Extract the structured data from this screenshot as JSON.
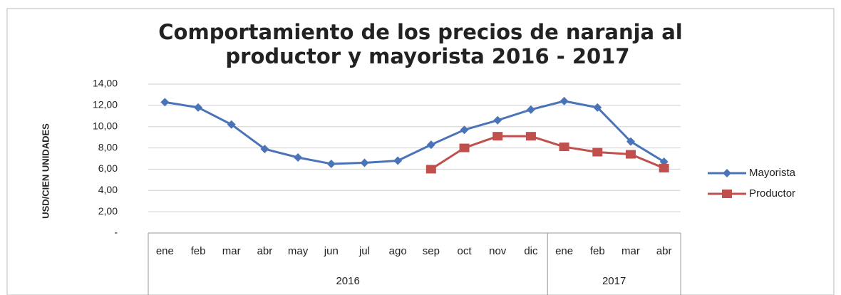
{
  "chart_data": {
    "type": "line",
    "title": [
      "Comportamiento de los precios de naranja al",
      "productor y mayorista 2016 - 2017"
    ],
    "y_label": "USD/CIEN UNIDADES",
    "categories": [
      "ene",
      "feb",
      "mar",
      "abr",
      "may",
      "jun",
      "jul",
      "ago",
      "sep",
      "oct",
      "nov",
      "dic",
      "ene",
      "feb",
      "mar",
      "abr"
    ],
    "groups": [
      {
        "label": "2016",
        "count": 12
      },
      {
        "label": "2017",
        "count": 4
      }
    ],
    "series": [
      {
        "name": "Mayorista",
        "color": "#4a73b8",
        "marker": "diamond",
        "values": [
          12.3,
          11.8,
          10.2,
          7.9,
          7.1,
          6.5,
          6.6,
          6.8,
          8.3,
          9.7,
          10.6,
          11.6,
          12.4,
          11.8,
          8.6,
          6.7
        ]
      },
      {
        "name": "Productor",
        "color": "#c0504d",
        "marker": "square",
        "values": [
          null,
          null,
          null,
          null,
          null,
          null,
          null,
          null,
          6.0,
          8.0,
          9.1,
          9.1,
          8.1,
          7.6,
          7.4,
          6.1
        ]
      }
    ],
    "ylim": [
      0,
      14
    ],
    "yticks": [
      {
        "value": 0,
        "label": "-"
      },
      {
        "value": 2,
        "label": "2,00"
      },
      {
        "value": 4,
        "label": "4,00"
      },
      {
        "value": 6,
        "label": "6,00"
      },
      {
        "value": 8,
        "label": "8,00"
      },
      {
        "value": 10,
        "label": "10,00"
      },
      {
        "value": 12,
        "label": "12,00"
      },
      {
        "value": 14,
        "label": "14,00"
      }
    ],
    "grid": true,
    "legend": "right"
  }
}
